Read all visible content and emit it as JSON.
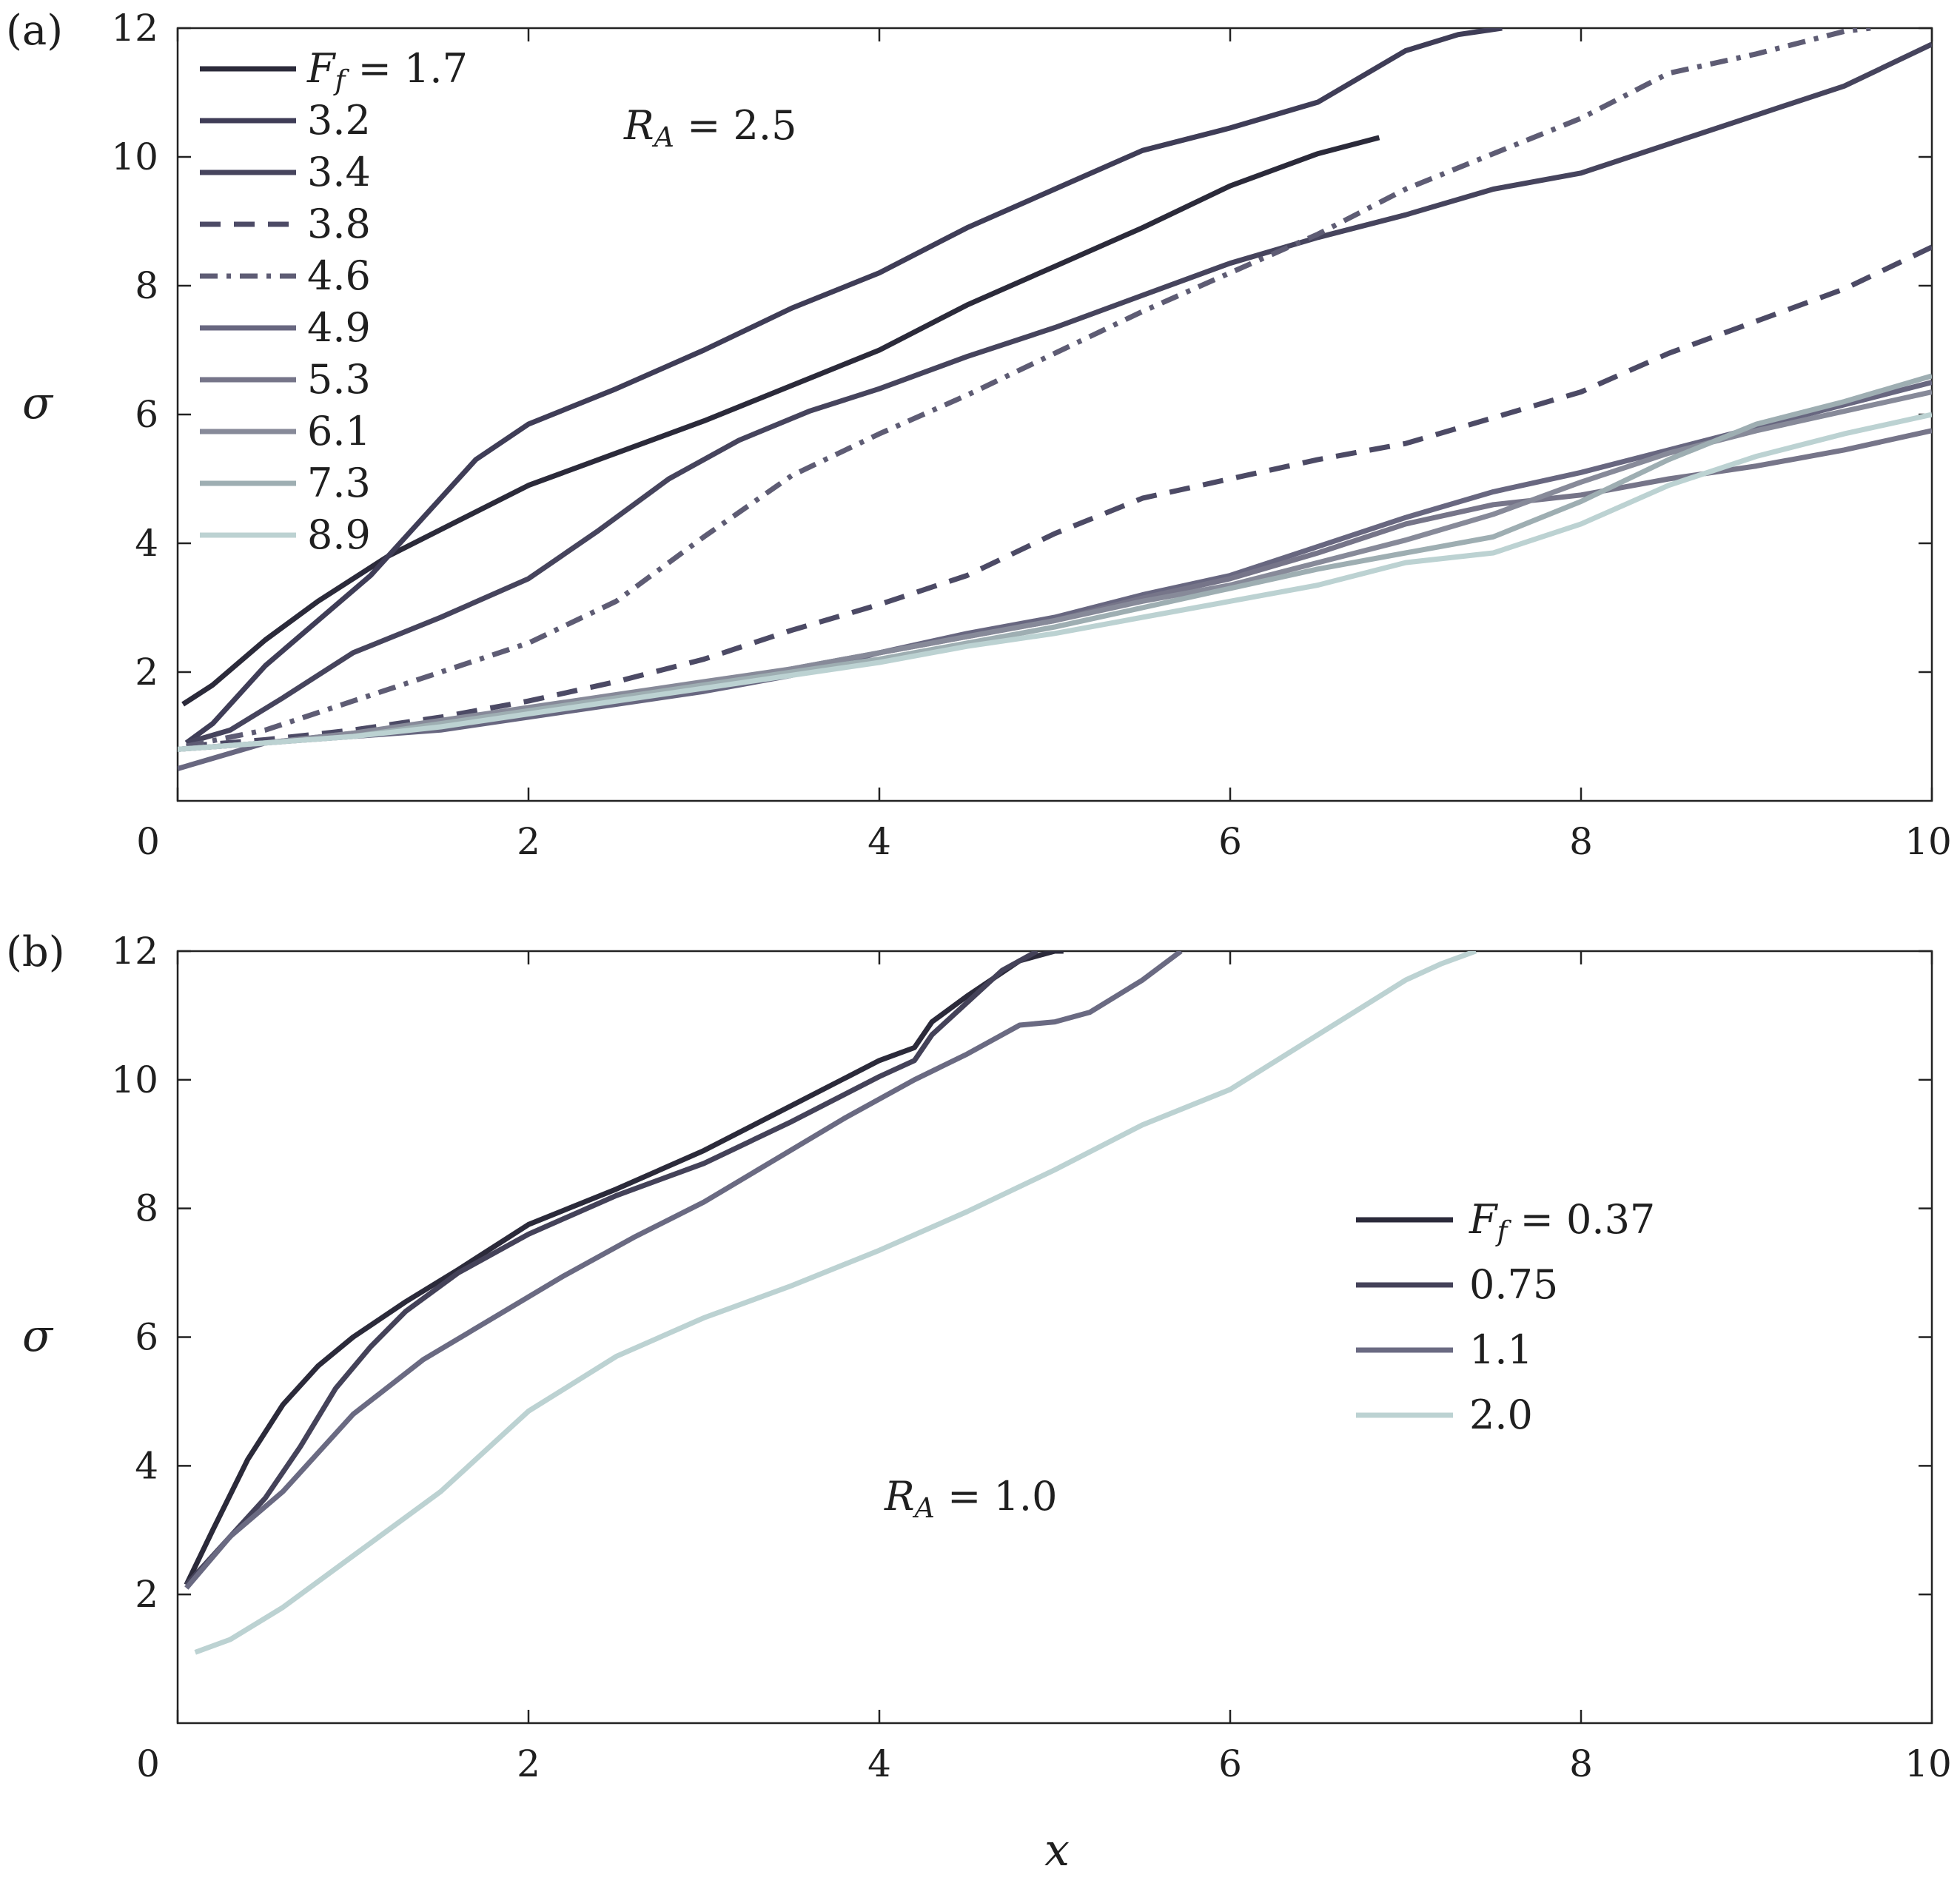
{
  "figure": {
    "xlabel": "x",
    "panels": [
      {
        "id": "a",
        "panel_label": "(a)",
        "ylabel": "σ",
        "annotation": "R_A = 2.5",
        "legend_prefix": "F_f = ",
        "legend_labels": [
          "1.7",
          "3.2",
          "3.4",
          "3.8",
          "4.6",
          "4.9",
          "5.3",
          "6.1",
          "7.3",
          "8.9"
        ]
      },
      {
        "id": "b",
        "panel_label": "(b)",
        "ylabel": "σ",
        "annotation": "R_A = 1.0",
        "legend_prefix": "F_f = ",
        "legend_labels": [
          "0.37",
          "0.75",
          "1.1",
          "2.0"
        ]
      }
    ]
  },
  "chart_data": [
    {
      "type": "line",
      "panel": "a",
      "title": "",
      "xlabel": "",
      "ylabel": "σ",
      "annotation": "R_A = 2.5",
      "xlim": [
        0,
        10
      ],
      "ylim": [
        0,
        12
      ],
      "xticks": [
        0,
        2,
        4,
        6,
        8,
        10
      ],
      "yticks": [
        2,
        4,
        6,
        8,
        10,
        12
      ],
      "legend_position": "top-left",
      "grid": false,
      "series": [
        {
          "name": "F_f = 1.7",
          "color": "#2b2a3a",
          "dash": "solid",
          "x": [
            0.03,
            0.2,
            0.5,
            0.8,
            1.2,
            1.6,
            2.0,
            2.5,
            3.0,
            3.5,
            4.0,
            4.5,
            5.0,
            5.5,
            6.0,
            6.5,
            6.85
          ],
          "y": [
            1.5,
            1.8,
            2.5,
            3.1,
            3.8,
            4.35,
            4.9,
            5.4,
            5.9,
            6.45,
            7.0,
            7.7,
            8.3,
            8.9,
            9.55,
            10.05,
            10.3
          ]
        },
        {
          "name": "3.2",
          "color": "#3f3d57",
          "dash": "solid",
          "x": [
            0.05,
            0.2,
            0.5,
            0.8,
            1.1,
            1.4,
            1.7,
            2.0,
            2.5,
            3.0,
            3.5,
            4.0,
            4.5,
            5.0,
            5.5,
            6.0,
            6.5,
            7.0,
            7.3,
            7.55
          ],
          "y": [
            0.9,
            1.2,
            2.1,
            2.8,
            3.5,
            4.4,
            5.3,
            5.85,
            6.4,
            7.0,
            7.65,
            8.2,
            8.9,
            9.5,
            10.1,
            10.45,
            10.85,
            11.65,
            11.9,
            12.0
          ]
        },
        {
          "name": "3.4",
          "color": "#46445d",
          "dash": "solid",
          "x": [
            0.05,
            0.3,
            0.6,
            1.0,
            1.5,
            2.0,
            2.4,
            2.8,
            3.2,
            3.6,
            4.0,
            4.5,
            5.0,
            5.5,
            6.0,
            6.5,
            7.0,
            7.5,
            8.0,
            8.5,
            9.0,
            9.5,
            10.0
          ],
          "y": [
            0.9,
            1.1,
            1.6,
            2.3,
            2.85,
            3.45,
            4.2,
            5.0,
            5.6,
            6.05,
            6.4,
            6.9,
            7.35,
            7.85,
            8.35,
            8.75,
            9.1,
            9.5,
            9.75,
            10.2,
            10.65,
            11.1,
            11.75
          ]
        },
        {
          "name": "3.8",
          "color": "#4c4a65",
          "dash": "dashed",
          "x": [
            0.05,
            0.5,
            1.0,
            1.5,
            2.0,
            2.5,
            3.0,
            3.5,
            4.0,
            4.5,
            5.0,
            5.5,
            6.0,
            6.5,
            7.0,
            7.5,
            8.0,
            8.5,
            9.0,
            9.5,
            10.0
          ],
          "y": [
            0.85,
            0.95,
            1.1,
            1.3,
            1.55,
            1.85,
            2.2,
            2.65,
            3.05,
            3.5,
            4.15,
            4.7,
            5.0,
            5.3,
            5.55,
            5.95,
            6.35,
            6.95,
            7.45,
            7.95,
            8.6
          ]
        },
        {
          "name": "4.6",
          "color": "#5e5c74",
          "dash": "dashdot",
          "x": [
            0.05,
            0.5,
            1.0,
            1.5,
            2.0,
            2.5,
            3.0,
            3.5,
            4.0,
            4.5,
            5.0,
            5.5,
            6.0,
            6.5,
            7.0,
            7.5,
            8.0,
            8.5,
            9.0,
            9.5,
            9.65
          ],
          "y": [
            0.85,
            1.1,
            1.55,
            2.0,
            2.45,
            3.1,
            4.1,
            5.05,
            5.7,
            6.3,
            6.95,
            7.6,
            8.2,
            8.8,
            9.5,
            10.05,
            10.6,
            11.3,
            11.6,
            11.95,
            12.0
          ]
        },
        {
          "name": "4.9",
          "color": "#686780",
          "dash": "solid",
          "x": [
            0.0,
            0.5,
            1.0,
            1.5,
            2.0,
            2.5,
            3.0,
            3.5,
            4.0,
            4.5,
            5.0,
            5.5,
            6.0,
            6.5,
            7.0,
            7.5,
            8.0,
            8.5,
            9.0,
            9.5,
            10.0
          ],
          "y": [
            0.5,
            0.9,
            1.0,
            1.1,
            1.3,
            1.5,
            1.7,
            1.95,
            2.3,
            2.6,
            2.85,
            3.2,
            3.5,
            3.95,
            4.4,
            4.8,
            5.1,
            5.45,
            5.8,
            6.15,
            6.5
          ]
        },
        {
          "name": "5.3",
          "color": "#767589",
          "dash": "solid",
          "x": [
            0.0,
            0.5,
            1.0,
            1.5,
            2.0,
            2.5,
            3.0,
            3.5,
            4.0,
            4.5,
            5.0,
            5.5,
            6.0,
            6.5,
            7.0,
            7.5,
            8.0,
            8.5,
            9.0,
            9.5,
            10.0
          ],
          "y": [
            0.8,
            0.9,
            1.05,
            1.2,
            1.4,
            1.6,
            1.8,
            2.05,
            2.3,
            2.55,
            2.8,
            3.15,
            3.45,
            3.85,
            4.3,
            4.6,
            4.75,
            5.0,
            5.2,
            5.45,
            5.75
          ]
        },
        {
          "name": "6.1",
          "color": "#878a99",
          "dash": "solid",
          "x": [
            0.0,
            0.5,
            1.0,
            1.5,
            2.0,
            2.5,
            3.0,
            3.5,
            4.0,
            4.5,
            5.0,
            5.5,
            6.0,
            6.5,
            7.0,
            7.5,
            8.0,
            8.5,
            9.0,
            9.5,
            10.0
          ],
          "y": [
            0.8,
            0.9,
            1.05,
            1.25,
            1.45,
            1.65,
            1.85,
            2.05,
            2.3,
            2.55,
            2.8,
            3.1,
            3.35,
            3.7,
            4.05,
            4.45,
            4.95,
            5.4,
            5.75,
            6.05,
            6.35
          ]
        },
        {
          "name": "7.3",
          "color": "#9eaeb2",
          "dash": "solid",
          "x": [
            0.0,
            0.5,
            1.0,
            1.5,
            2.0,
            2.5,
            3.0,
            3.5,
            4.0,
            4.5,
            5.0,
            5.5,
            6.0,
            6.5,
            7.0,
            7.5,
            8.0,
            8.5,
            9.0,
            9.5,
            10.0
          ],
          "y": [
            0.8,
            0.9,
            1.0,
            1.2,
            1.4,
            1.6,
            1.8,
            2.0,
            2.2,
            2.45,
            2.7,
            3.0,
            3.3,
            3.6,
            3.85,
            4.1,
            4.65,
            5.3,
            5.85,
            6.2,
            6.6
          ]
        },
        {
          "name": "8.9",
          "color": "#bcd2d2",
          "dash": "solid",
          "x": [
            0.0,
            0.5,
            1.0,
            1.5,
            2.0,
            2.5,
            3.0,
            3.5,
            4.0,
            4.5,
            5.0,
            5.5,
            6.0,
            6.5,
            7.0,
            7.5,
            8.0,
            8.5,
            9.0,
            9.5,
            10.0
          ],
          "y": [
            0.8,
            0.9,
            1.0,
            1.15,
            1.35,
            1.55,
            1.75,
            1.95,
            2.15,
            2.4,
            2.6,
            2.85,
            3.1,
            3.35,
            3.7,
            3.85,
            4.3,
            4.9,
            5.35,
            5.7,
            6.0
          ]
        }
      ]
    },
    {
      "type": "line",
      "panel": "b",
      "title": "",
      "xlabel": "x",
      "ylabel": "σ",
      "annotation": "R_A = 1.0",
      "xlim": [
        0,
        10
      ],
      "ylim": [
        0,
        12
      ],
      "xticks": [
        0,
        2,
        4,
        6,
        8,
        10
      ],
      "yticks": [
        2,
        4,
        6,
        8,
        10,
        12
      ],
      "legend_position": "center-right",
      "grid": false,
      "series": [
        {
          "name": "F_f = 0.37",
          "color": "#2b2a3a",
          "dash": "solid",
          "x": [
            0.05,
            0.2,
            0.4,
            0.6,
            0.8,
            1.0,
            1.3,
            1.6,
            2.0,
            2.5,
            3.0,
            3.5,
            4.0,
            4.2,
            4.3,
            4.5,
            4.8,
            5.0,
            5.05
          ],
          "y": [
            2.15,
            3.0,
            4.1,
            4.95,
            5.55,
            6.0,
            6.55,
            7.05,
            7.75,
            8.3,
            8.9,
            9.6,
            10.3,
            10.5,
            10.9,
            11.3,
            11.85,
            12.0,
            12.0
          ]
        },
        {
          "name": "0.75",
          "color": "#444259",
          "dash": "solid",
          "x": [
            0.05,
            0.3,
            0.5,
            0.7,
            0.9,
            1.1,
            1.3,
            1.6,
            2.0,
            2.5,
            3.0,
            3.5,
            4.0,
            4.2,
            4.3,
            4.5,
            4.7,
            4.9
          ],
          "y": [
            2.15,
            2.9,
            3.5,
            4.3,
            5.2,
            5.85,
            6.4,
            7.0,
            7.6,
            8.2,
            8.7,
            9.35,
            10.05,
            10.3,
            10.7,
            11.2,
            11.7,
            12.0
          ]
        },
        {
          "name": "1.1",
          "color": "#6a6a82",
          "dash": "solid",
          "x": [
            0.05,
            0.3,
            0.6,
            1.0,
            1.4,
            1.8,
            2.2,
            2.6,
            3.0,
            3.4,
            3.8,
            4.2,
            4.5,
            4.8,
            5.0,
            5.2,
            5.5,
            5.72
          ],
          "y": [
            2.1,
            2.9,
            3.6,
            4.8,
            5.65,
            6.3,
            6.95,
            7.55,
            8.1,
            8.75,
            9.4,
            10.0,
            10.4,
            10.85,
            10.9,
            11.05,
            11.55,
            12.0
          ]
        },
        {
          "name": "2.0",
          "color": "#bcd2d2",
          "dash": "solid",
          "x": [
            0.1,
            0.3,
            0.6,
            1.0,
            1.5,
            2.0,
            2.5,
            3.0,
            3.5,
            4.0,
            4.5,
            5.0,
            5.5,
            6.0,
            6.5,
            7.0,
            7.2,
            7.4
          ],
          "y": [
            1.1,
            1.3,
            1.8,
            2.6,
            3.6,
            4.85,
            5.7,
            6.3,
            6.8,
            7.35,
            7.95,
            8.6,
            9.3,
            9.85,
            10.7,
            11.55,
            11.8,
            12.0
          ]
        }
      ]
    }
  ]
}
